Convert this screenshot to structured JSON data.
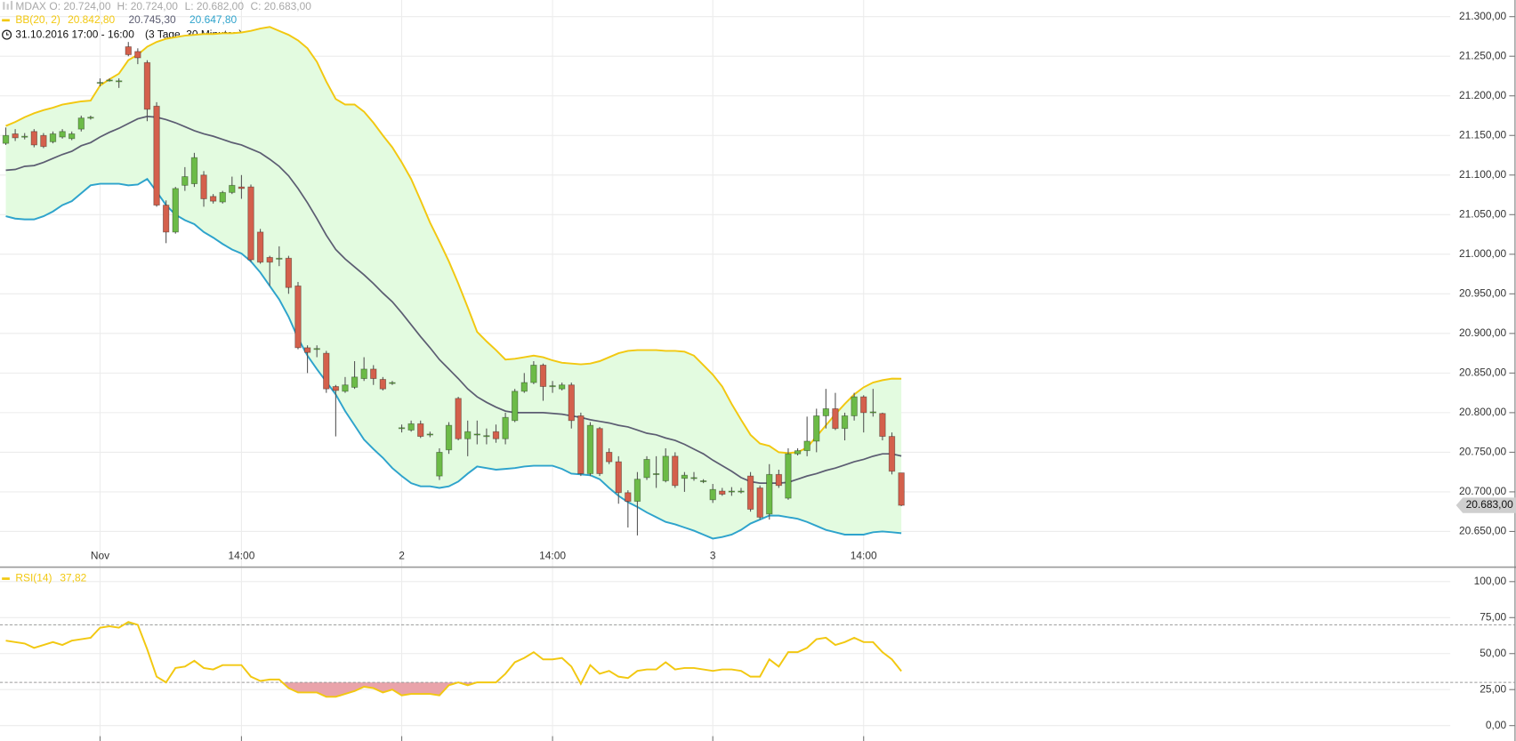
{
  "chart_data": [
    {
      "type": "candlestick",
      "symbol": "MDAX",
      "ohlc_labels": [
        "O: 20.724,00",
        "H: 20.724,00",
        "L: 20.682,00",
        "C: 20.683,00"
      ],
      "period": "31.10.2016 17:00 - 16:00",
      "period_note": "(3 Tage, 30 Minuten)",
      "categories": [
        null,
        null,
        null,
        null,
        null,
        null,
        null,
        null,
        null,
        null,
        "Nov",
        null,
        null,
        null,
        null,
        null,
        null,
        null,
        null,
        null,
        null,
        null,
        null,
        null,
        null,
        "14:00",
        null,
        null,
        null,
        null,
        null,
        null,
        null,
        null,
        null,
        null,
        null,
        null,
        null,
        null,
        null,
        null,
        "2",
        null,
        null,
        null,
        null,
        null,
        null,
        null,
        null,
        null,
        null,
        null,
        null,
        null,
        null,
        null,
        "14:00",
        null,
        null,
        null,
        null,
        null,
        null,
        null,
        null,
        null,
        null,
        null,
        null,
        null,
        null,
        null,
        null,
        "3",
        null,
        null,
        null,
        null,
        null,
        null,
        null,
        null,
        null,
        null,
        null,
        null,
        null,
        null,
        null,
        "14:00",
        null,
        null,
        null,
        null
      ],
      "open": [
        21140,
        21152,
        21148,
        21155,
        21150,
        21142,
        21148,
        21146,
        21158,
        21172,
        21216,
        21220,
        21218,
        21262,
        21256,
        21242,
        21187,
        21062,
        21028,
        21087,
        21089,
        21100,
        21073,
        21066,
        21078,
        21085,
        21085,
        21028,
        20996,
        20994,
        20995,
        20960,
        20882,
        20880,
        20875,
        20833,
        20827,
        20832,
        20843,
        20855,
        20842,
        20837,
        20780,
        20778,
        20786,
        20772,
        20720,
        20753,
        20818,
        20767,
        20772,
        20770,
        20776,
        20767,
        20790,
        20827,
        20838,
        20860,
        20833,
        20830,
        20835,
        20796,
        20723,
        20780,
        20750,
        20738,
        20699,
        20688,
        20718,
        20722,
        20714,
        20745,
        20717,
        20717,
        20713,
        20690,
        20701,
        20700,
        20700,
        20720,
        20705,
        20672,
        20722,
        20692,
        20748,
        20752,
        20764,
        20796,
        20805,
        20780,
        20796,
        20820,
        20800,
        20799,
        20770,
        20724
      ],
      "high": [
        21160,
        21158,
        21153,
        21158,
        21153,
        21155,
        21158,
        21155,
        21175,
        21175,
        21222,
        21222,
        21222,
        21268,
        21260,
        21245,
        21192,
        21068,
        21085,
        21110,
        21128,
        21105,
        21076,
        21080,
        21098,
        21100,
        21088,
        21032,
        20998,
        21010,
        20998,
        20965,
        20885,
        20885,
        20878,
        20835,
        20845,
        20865,
        20870,
        20860,
        20845,
        20840,
        20785,
        20790,
        20790,
        20776,
        20755,
        20788,
        20820,
        20790,
        20790,
        20780,
        20785,
        20800,
        20830,
        20850,
        20865,
        20862,
        20840,
        20838,
        20838,
        20800,
        20788,
        20782,
        20755,
        20745,
        20702,
        20725,
        20745,
        20745,
        20755,
        20750,
        20725,
        20725,
        20716,
        20710,
        20705,
        20706,
        20705,
        20725,
        20708,
        20735,
        20728,
        20755,
        20755,
        20795,
        20805,
        20830,
        20825,
        20800,
        20825,
        20822,
        20830,
        20800,
        20775,
        20724
      ],
      "low": [
        21138,
        21143,
        21145,
        21135,
        21134,
        21140,
        21146,
        21144,
        21155,
        21170,
        21212,
        21218,
        21210,
        21250,
        21240,
        21168,
        21060,
        21014,
        21026,
        21080,
        21085,
        21060,
        21064,
        21064,
        21076,
        21070,
        20990,
        20988,
        20960,
        20985,
        20950,
        20880,
        20850,
        20870,
        20825,
        20770,
        20825,
        20830,
        20840,
        20835,
        20828,
        20835,
        20775,
        20776,
        20768,
        20769,
        20715,
        20748,
        20765,
        20745,
        20760,
        20760,
        20762,
        20760,
        20788,
        20825,
        20836,
        20815,
        20825,
        20828,
        20780,
        20720,
        20720,
        20720,
        20735,
        20685,
        20655,
        20645,
        20715,
        20705,
        20712,
        20705,
        20700,
        20714,
        20711,
        20686,
        20695,
        20695,
        20698,
        20675,
        20665,
        20665,
        20705,
        20690,
        20746,
        20745,
        20750,
        20780,
        20778,
        20765,
        20790,
        20775,
        20795,
        20765,
        20722,
        20682
      ],
      "close": [
        21150,
        21147,
        21149,
        21138,
        21136,
        21152,
        21155,
        21152,
        21172,
        21173,
        21217,
        21220,
        21219,
        21252,
        21248,
        21183,
        21062,
        21028,
        21083,
        21098,
        21122,
        21070,
        21067,
        21078,
        21087,
        21083,
        20993,
        20990,
        20990,
        20995,
        20958,
        20882,
        20876,
        20881,
        20830,
        20828,
        20835,
        20845,
        20855,
        20843,
        20830,
        20838,
        20781,
        20786,
        20770,
        20773,
        20750,
        20784,
        20767,
        20776,
        20773,
        20771,
        20767,
        20794,
        20827,
        20838,
        20860,
        20833,
        20834,
        20835,
        20790,
        20723,
        20784,
        20723,
        20738,
        20699,
        20688,
        20716,
        20741,
        20723,
        20745,
        20708,
        20721,
        20718,
        20714,
        20703,
        20697,
        20701,
        20701,
        20678,
        20668,
        20722,
        20708,
        20748,
        20752,
        20764,
        20796,
        20805,
        20780,
        20796,
        20820,
        20800,
        20801,
        20770,
        20726,
        20683
      ],
      "up_color": "#6cbb47",
      "down_color": "#d4604c",
      "fill_color": "#e3fbe0",
      "series": [
        {
          "name": "BB(20, 2)",
          "color": "#f2c811",
          "last_label": "20.842,80",
          "values": [
            21162,
            21167,
            21173,
            21178,
            21182,
            21185,
            21189,
            21191,
            21193,
            21194,
            21213,
            21221,
            21228,
            21245,
            21252,
            21262,
            21268,
            21272,
            21274,
            21276,
            21277,
            21278,
            21278,
            21279,
            21279,
            21280,
            21282,
            21285,
            21287,
            21282,
            21277,
            21270,
            21260,
            21243,
            21218,
            21196,
            21189,
            21189,
            21180,
            21166,
            21150,
            21135,
            21116,
            21095,
            21068,
            21040,
            21016,
            20991,
            20963,
            20933,
            20902,
            20890,
            20879,
            20867,
            20868,
            20870,
            20872,
            20870,
            20866,
            20863,
            20862,
            20861,
            20862,
            20865,
            20870,
            20875,
            20878,
            20879,
            20879,
            20879,
            20878,
            20878,
            20877,
            20872,
            20860,
            20848,
            20833,
            20811,
            20791,
            20772,
            20761,
            20758,
            20750,
            20749,
            20750,
            20756,
            20770,
            20784,
            20798,
            20811,
            20823,
            20832,
            20838,
            20841,
            20843,
            20842.8
          ]
        },
        {
          "color": "#5c5d72",
          "last_label": "20.745,30",
          "values": [
            21106,
            21107,
            21111,
            21112,
            21116,
            21121,
            21126,
            21130,
            21137,
            21141,
            21148,
            21154,
            21159,
            21165,
            21171,
            21174,
            21173,
            21170,
            21166,
            21161,
            21156,
            21152,
            21149,
            21145,
            21141,
            21138,
            21133,
            21128,
            21120,
            21111,
            21099,
            21083,
            21065,
            21045,
            21024,
            21006,
            20994,
            20984,
            20974,
            20963,
            20951,
            20940,
            20926,
            20911,
            20896,
            20882,
            20867,
            20855,
            20843,
            20830,
            20820,
            20813,
            20807,
            20802,
            20800,
            20800,
            20800,
            20800,
            20799,
            20798,
            20796,
            20794,
            20791,
            20789,
            20787,
            20784,
            20782,
            20778,
            20774,
            20772,
            20768,
            20765,
            20760,
            20754,
            20748,
            20740,
            20733,
            20726,
            20718,
            20713,
            20711,
            20711,
            20711,
            20712,
            20716,
            20720,
            20723,
            20727,
            20730,
            20734,
            20738,
            20741,
            20745,
            20748,
            20748,
            20745.3
          ]
        },
        {
          "color": "#2ea3cc",
          "last_label": "20.647,80",
          "values": [
            21048,
            21045,
            21044,
            21044,
            21048,
            21054,
            21062,
            21067,
            21077,
            21087,
            21089,
            21089,
            21089,
            21087,
            21088,
            21095,
            21079,
            21062,
            21050,
            21043,
            21038,
            21028,
            21021,
            21013,
            21006,
            21001,
            20991,
            20977,
            20960,
            20943,
            20921,
            20894,
            20872,
            20855,
            20839,
            20823,
            20802,
            20784,
            20766,
            20754,
            20743,
            20730,
            20720,
            20711,
            20707,
            20707,
            20705,
            20707,
            20713,
            20723,
            20732,
            20730,
            20728,
            20729,
            20730,
            20732,
            20733,
            20733,
            20733,
            20729,
            20723,
            20722,
            20721,
            20716,
            20705,
            20695,
            20687,
            20681,
            20674,
            20668,
            20662,
            20659,
            20655,
            20651,
            20646,
            20641,
            20643,
            20646,
            20652,
            20660,
            20665,
            20670,
            20670,
            20668,
            20666,
            20662,
            20657,
            20652,
            20649,
            20646,
            20646,
            20646,
            20649,
            20650,
            20649,
            20647.8
          ]
        }
      ],
      "ylim": [
        20605,
        21321
      ],
      "yticks": [
        {
          "value": 20650,
          "label": "20.650,00"
        },
        {
          "value": 20700,
          "label": "20.700,00"
        },
        {
          "value": 20750,
          "label": "20.750,00"
        },
        {
          "value": 20800,
          "label": "20.800,00"
        },
        {
          "value": 20850,
          "label": "20.850,00"
        },
        {
          "value": 20900,
          "label": "20.900,00"
        },
        {
          "value": 20950,
          "label": "20.950,00"
        },
        {
          "value": 21000,
          "label": "21.000,00"
        },
        {
          "value": 21050,
          "label": "21.050,00"
        },
        {
          "value": 21100,
          "label": "21.100,00"
        },
        {
          "value": 21150,
          "label": "21.150,00"
        },
        {
          "value": 21200,
          "label": "21.200,00"
        },
        {
          "value": 21250,
          "label": "21.250,00"
        },
        {
          "value": 21300,
          "label": "21.300,00"
        }
      ],
      "grid": true,
      "last_price": {
        "value": 20683,
        "label": "20.683,00"
      }
    },
    {
      "type": "line",
      "series": [
        {
          "name": "RSI(14)",
          "color": "#f2c811",
          "last_label": "37,82",
          "values": [
            59,
            58,
            57,
            54,
            56,
            58,
            56,
            59,
            60,
            61,
            68,
            69,
            68,
            72,
            70,
            53,
            34,
            30,
            40,
            41,
            45,
            40,
            39,
            42,
            42,
            42,
            34,
            31,
            32,
            32,
            26,
            23,
            23,
            23,
            20,
            20,
            22,
            24,
            27,
            26,
            23,
            25,
            21,
            22,
            22,
            22,
            21,
            28,
            30,
            28,
            30,
            30,
            30,
            36,
            44,
            47,
            51,
            46,
            46,
            47,
            41,
            29,
            42,
            36,
            38,
            34,
            33,
            38,
            39,
            39,
            44,
            39,
            40,
            40,
            39,
            38,
            39,
            39,
            38,
            34,
            34,
            46,
            41,
            51,
            51,
            54,
            60,
            61,
            56,
            58,
            61,
            58,
            58,
            51,
            46,
            37.82
          ]
        }
      ],
      "ylim": [
        -10.7,
        109.4
      ],
      "yticks": [
        {
          "value": 0,
          "label": "0,00"
        },
        {
          "value": 25,
          "label": "25,00"
        },
        {
          "value": 50,
          "label": "50,00"
        },
        {
          "value": 75,
          "label": "75,00"
        },
        {
          "value": 100,
          "label": "100,00"
        }
      ],
      "thresholds": [
        70,
        30
      ],
      "overbought_color": "#9fd39a",
      "oversold_color": "#e9a3aa",
      "grid": true
    }
  ]
}
